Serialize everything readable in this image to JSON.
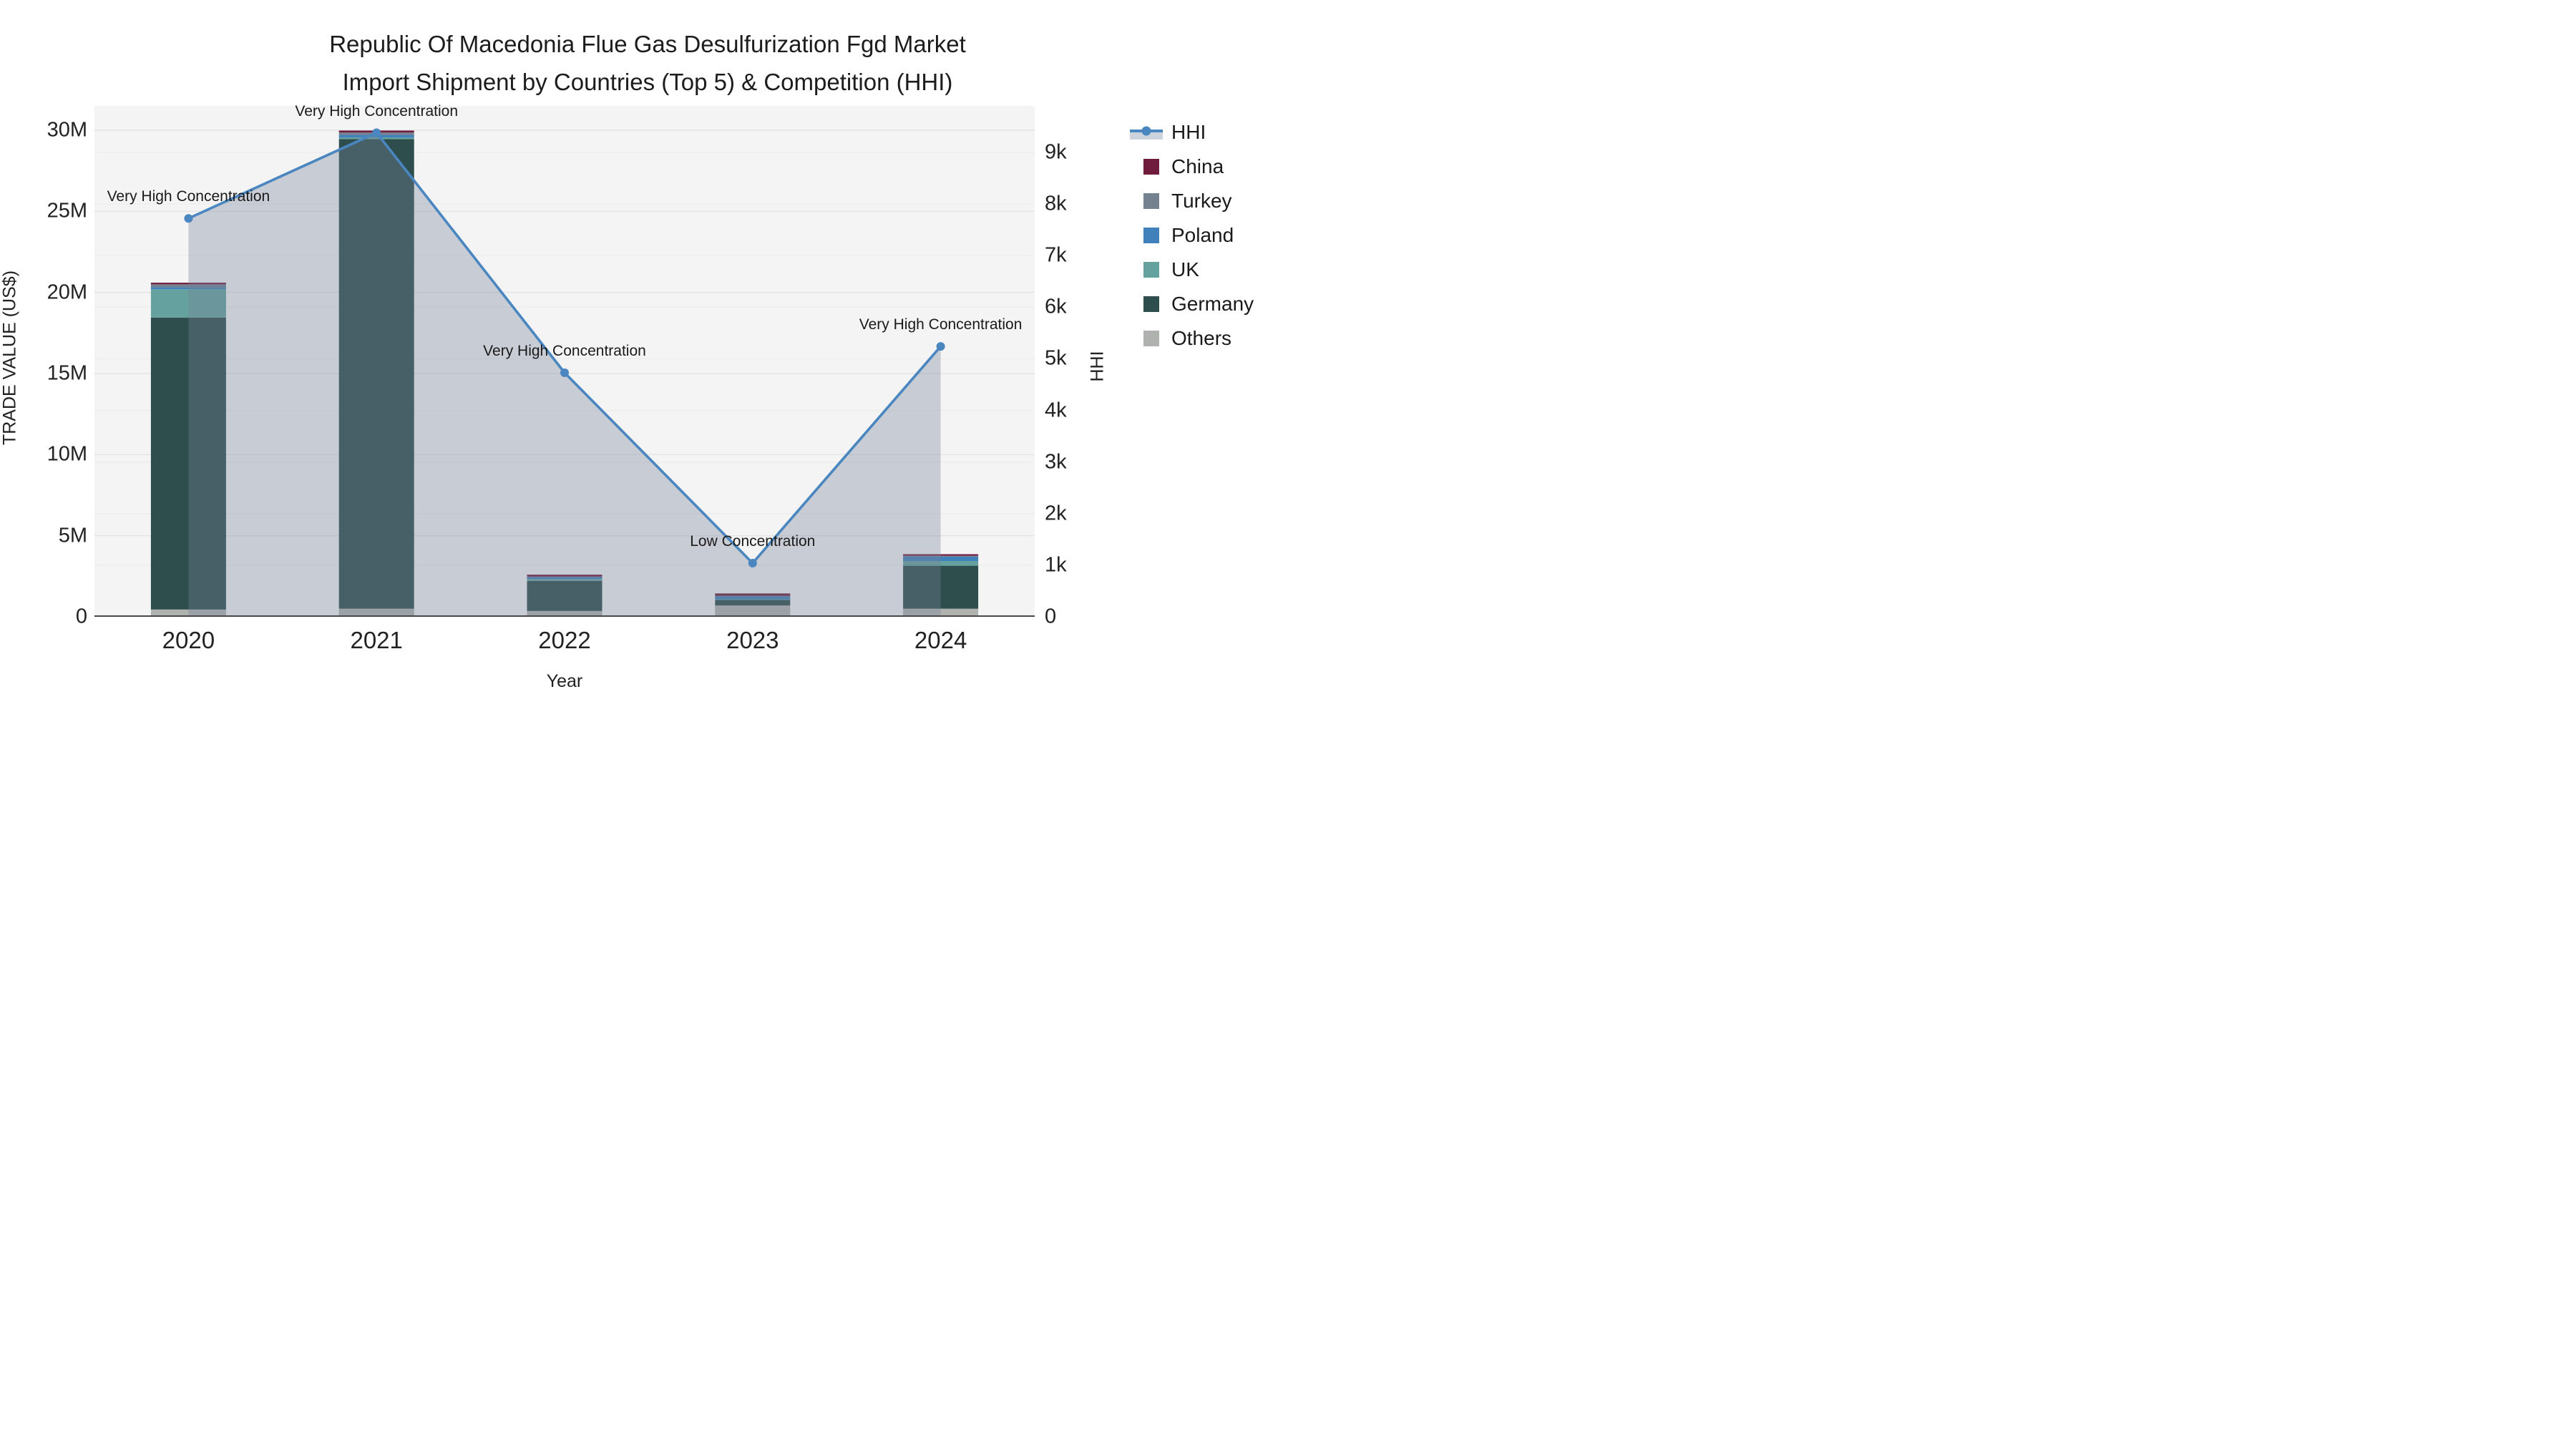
{
  "title": {
    "line1": "Republic Of Macedonia Flue Gas Desulfurization Fgd Market",
    "line2": "Import Shipment by Countries (Top 5) & Competition (HHI)"
  },
  "axes": {
    "x_title": "Year",
    "y_left_title": "TRADE VALUE (US$)",
    "y_right_title": "HHI"
  },
  "legend": {
    "items": [
      {
        "label": "HHI",
        "type": "line",
        "color": "#4a86bf",
        "band_color": "#ccd3dc"
      },
      {
        "label": "China",
        "type": "square",
        "color": "#701d3d"
      },
      {
        "label": "Turkey",
        "type": "square",
        "color": "#74818f"
      },
      {
        "label": "Poland",
        "type": "square",
        "color": "#4181bb"
      },
      {
        "label": "UK",
        "type": "square",
        "color": "#64a19f"
      },
      {
        "label": "Germany",
        "type": "square",
        "color": "#2e4d4d"
      },
      {
        "label": "Others",
        "type": "square",
        "color": "#b0b2b0"
      }
    ]
  },
  "colors": {
    "plot_background": "#f4f4f4",
    "page_background": "#ffffff",
    "grid_left": "#e3e3e3",
    "grid_right": "#ededed",
    "axis_line": "#474747",
    "hhi_line": "#4a86bf",
    "hhi_area_fill": "rgba(118,128,152,0.35)",
    "annotation_text": "#1a1a1a"
  },
  "chart_data": {
    "type": "combo",
    "subtype": [
      "stacked-bar",
      "line-with-area"
    ],
    "categories": [
      "2020",
      "2021",
      "2022",
      "2023",
      "2024"
    ],
    "bar_series_bottom_to_top": [
      {
        "name": "Others",
        "color": "#b0b2b0",
        "values_usd": [
          450000,
          500000,
          360000,
          700000,
          500000
        ]
      },
      {
        "name": "Germany",
        "color": "#2e4d4d",
        "values_usd": [
          18000000,
          28950000,
          1850000,
          350000,
          2650000
        ]
      },
      {
        "name": "UK",
        "color": "#64a19f",
        "values_usd": [
          1750000,
          110000,
          120000,
          20000,
          290000
        ]
      },
      {
        "name": "Poland",
        "color": "#4181bb",
        "values_usd": [
          120000,
          150000,
          120000,
          200000,
          270000
        ]
      },
      {
        "name": "Turkey",
        "color": "#74818f",
        "values_usd": [
          180000,
          150000,
          30000,
          20000,
          50000
        ]
      },
      {
        "name": "China",
        "color": "#701d3d",
        "values_usd": [
          100000,
          120000,
          120000,
          150000,
          100000
        ]
      }
    ],
    "bar_totals_usd": [
      20600000,
      29980000,
      2600000,
      1440000,
      3860000
    ],
    "line_series": {
      "name": "HHI",
      "axis": "right",
      "values": [
        7720,
        9380,
        4730,
        1040,
        5240
      ]
    },
    "annotations": [
      {
        "category": "2020",
        "text": "Very High Concentration"
      },
      {
        "category": "2021",
        "text": "Very High Concentration"
      },
      {
        "category": "2022",
        "text": "Very High Concentration"
      },
      {
        "category": "2023",
        "text": "Low Concentration"
      },
      {
        "category": "2024",
        "text": "Very High Concentration"
      }
    ],
    "y_left": {
      "label": "TRADE VALUE (US$)",
      "range": [
        0,
        31500000
      ],
      "ticks": [
        "0",
        "5M",
        "10M",
        "15M",
        "20M",
        "25M",
        "30M"
      ],
      "tick_values": [
        0,
        5000000,
        10000000,
        15000000,
        20000000,
        25000000,
        30000000
      ]
    },
    "y_right": {
      "label": "HHI",
      "range": [
        0,
        9900
      ],
      "ticks": [
        "0",
        "1k",
        "2k",
        "3k",
        "4k",
        "5k",
        "6k",
        "7k",
        "8k",
        "9k"
      ],
      "tick_values": [
        0,
        1000,
        2000,
        3000,
        4000,
        5000,
        6000,
        7000,
        8000,
        9000
      ]
    },
    "grid": true,
    "legend_position": "right"
  }
}
